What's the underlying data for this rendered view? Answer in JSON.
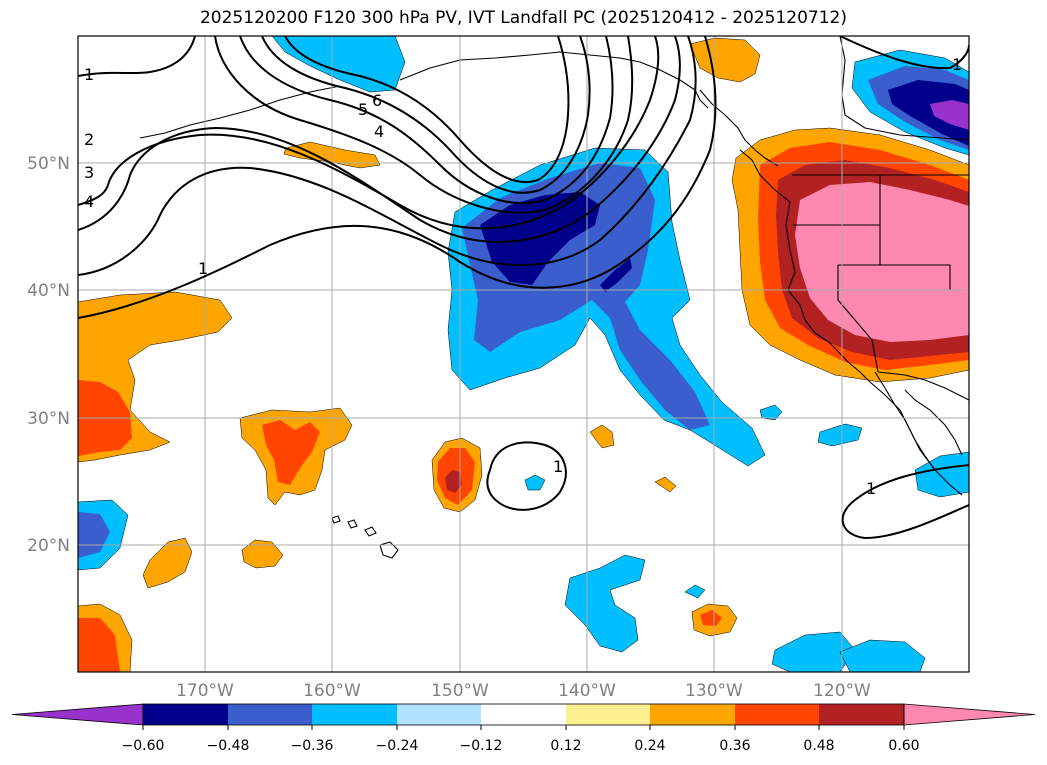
{
  "title": "2025120200 F120 300 hPa PV, IVT Landfall PC (2025120412 - 2025120712)",
  "lat_labels": [
    "50°N",
    "40°N",
    "30°N",
    "20°N"
  ],
  "lon_labels": [
    "170°W",
    "160°W",
    "150°W",
    "140°W",
    "130°W",
    "120°W"
  ],
  "contour_labels": [
    "1",
    "2",
    "3",
    "4",
    "4",
    "5",
    "6",
    "1",
    "1",
    "1",
    "1"
  ],
  "colorbar": {
    "ticks": [
      "−0.60",
      "−0.48",
      "−0.36",
      "−0.24",
      "−0.12",
      "0.12",
      "0.24",
      "0.36",
      "0.48",
      "0.60"
    ],
    "colors": [
      "#9932cc",
      "#00008b",
      "#3a5fcd",
      "#00bfff",
      "#b0e2ff",
      "#ffffff",
      "#fff08f",
      "#ffa500",
      "#ff4500",
      "#b22222",
      "#ff88b0"
    ]
  },
  "colors": {
    "orange": "#ffa500",
    "red_orange": "#ff4500",
    "dark_red": "#b22222",
    "pink": "#ff88b0",
    "sky": "#00bfff",
    "royal": "#3a5fcd",
    "navy": "#00008b",
    "purple": "#9932cc"
  }
}
